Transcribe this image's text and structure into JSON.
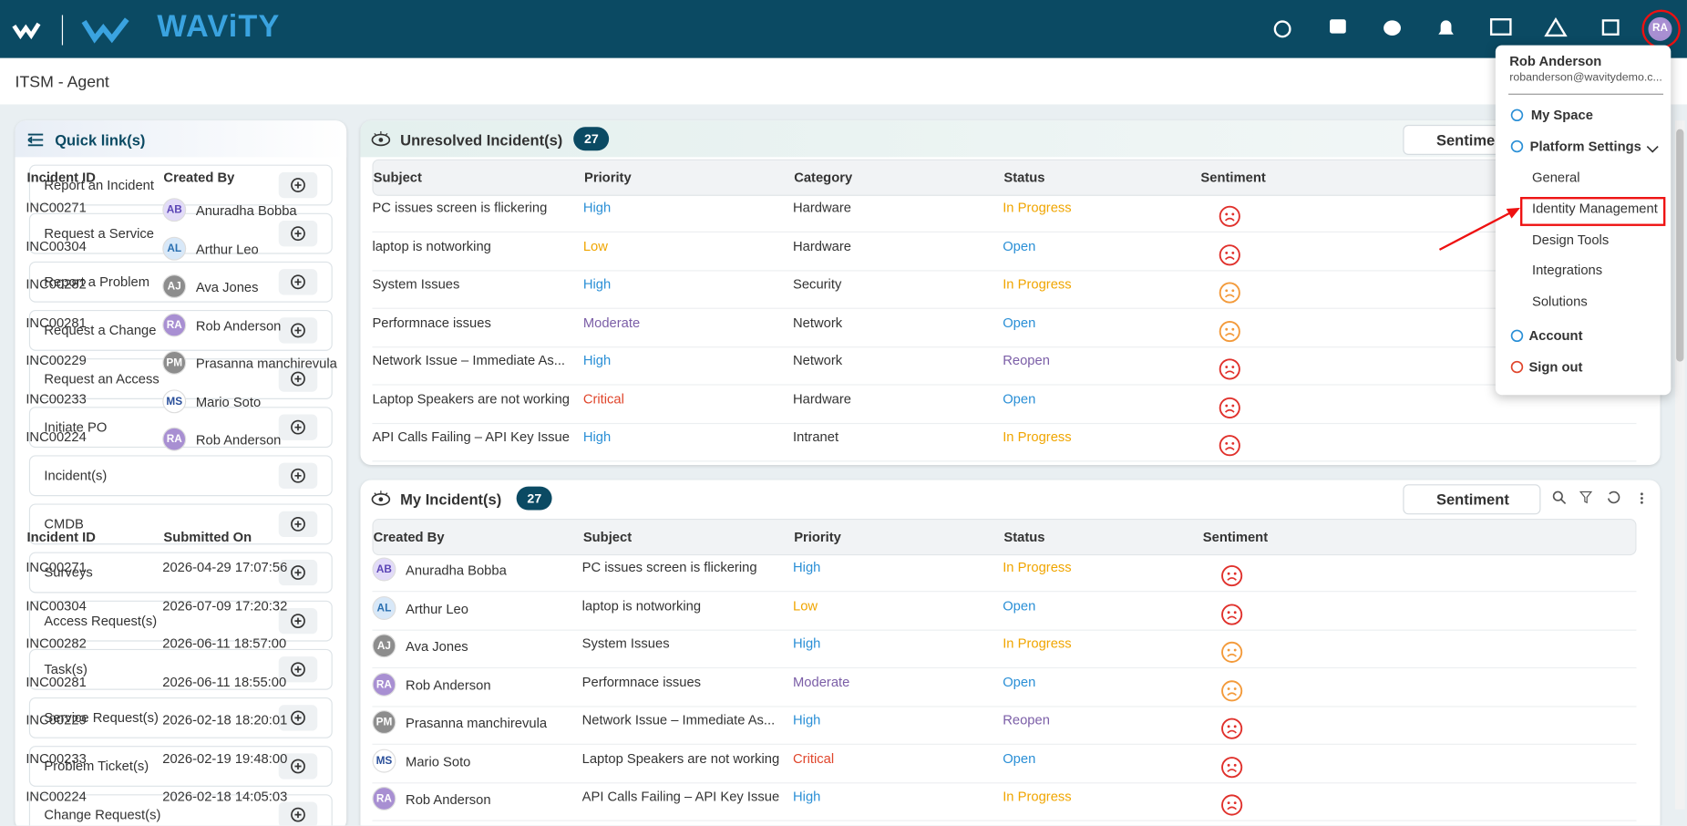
{
  "header": {
    "logo": "WAViTY",
    "avatar": "RA"
  },
  "page_title": "ITSM - Agent",
  "quick_links": {
    "title": "Quick link(s)",
    "items": [
      "Report an Incident",
      "Request a Service",
      "Report a Problem",
      "Request a Change",
      "Request an Access",
      "Initiate PO",
      "Incident(s)",
      "CMDB",
      "Surveys",
      "Access Request(s)",
      "Task(s)",
      "Service Request(s)",
      "Problem Ticket(s)",
      "Change Request(s)"
    ]
  },
  "colors": {
    "High": "#2a8fd6",
    "Low": "#f0a500",
    "Moderate": "#7b5ea7",
    "Critical": "#e0452b",
    "In Progress": "#f0a500",
    "Open": "#2a8fd6",
    "Reopen": "#7b5ea7"
  },
  "avatar_colors": {
    "AB": [
      "#e2dbf8",
      "#5b45b5"
    ],
    "AL": [
      "#d8e8f8",
      "#2a6fb0"
    ],
    "AJ": [
      "#8d8d8d",
      "#ffffff"
    ],
    "RA": [
      "#a88fd2",
      "#ffffff"
    ],
    "PM": [
      "#8d8d8d",
      "#ffffff"
    ],
    "MS": [
      "#ffffff",
      "#2a4f9a"
    ]
  },
  "unresolved": {
    "title": "Unresolved Incident(s)",
    "count": "27",
    "sentiment_label": "Sentiment",
    "columns": [
      "Incident ID",
      "Created By",
      "Subject",
      "Priority",
      "Category",
      "Status",
      "Sentiment"
    ],
    "rows": [
      {
        "id": "INC00271",
        "initials": "AB",
        "name": "Anuradha Bobba",
        "subject": "PC issues screen is flickering",
        "priority": "High",
        "category": "Hardware",
        "status": "In Progress",
        "sentiment": "#e0302b"
      },
      {
        "id": "INC00304",
        "initials": "AL",
        "name": "Arthur Leo",
        "subject": "laptop is notworking",
        "priority": "Low",
        "category": "Hardware",
        "status": "Open",
        "sentiment": "#e0302b"
      },
      {
        "id": "INC00282",
        "initials": "AJ",
        "name": "Ava Jones",
        "subject": "System Issues",
        "priority": "High",
        "category": "Security",
        "status": "In Progress",
        "sentiment": "#f39a3a"
      },
      {
        "id": "INC00281",
        "initials": "RA",
        "name": "Rob Anderson",
        "subject": "Performnace issues",
        "priority": "Moderate",
        "category": "Network",
        "status": "Open",
        "sentiment": "#f39a3a"
      },
      {
        "id": "INC00229",
        "initials": "PM",
        "name": "Prasanna manchirevula",
        "subject": "Network Issue – Immediate As...",
        "priority": "High",
        "category": "Network",
        "status": "Reopen",
        "sentiment": "#e0302b"
      },
      {
        "id": "INC00233",
        "initials": "MS",
        "name": "Mario Soto",
        "subject": "Laptop Speakers are not working",
        "priority": "Critical",
        "category": "Hardware",
        "status": "Open",
        "sentiment": "#e0302b"
      },
      {
        "id": "INC00224",
        "initials": "RA",
        "name": "Rob Anderson",
        "subject": "API Calls Failing – API Key Issue",
        "priority": "High",
        "category": "Intranet",
        "status": "In Progress",
        "sentiment": "#e0302b"
      }
    ]
  },
  "my_incidents": {
    "title": "My Incident(s)",
    "count": "27",
    "sentiment_label": "Sentiment",
    "columns": [
      "Incident ID",
      "Submitted On",
      "Created By",
      "Subject",
      "Priority",
      "Status",
      "Sentiment"
    ],
    "rows": [
      {
        "id": "INC00271",
        "submitted": "2026-04-29 17:07:56",
        "initials": "AB",
        "name": "Anuradha Bobba",
        "subject": "PC issues screen is flickering",
        "priority": "High",
        "status": "In Progress",
        "sentiment": "#e0302b"
      },
      {
        "id": "INC00304",
        "submitted": "2026-07-09 17:20:32",
        "initials": "AL",
        "name": "Arthur Leo",
        "subject": "laptop is notworking",
        "priority": "Low",
        "status": "Open",
        "sentiment": "#e0302b"
      },
      {
        "id": "INC00282",
        "submitted": "2026-06-11 18:57:00",
        "initials": "AJ",
        "name": "Ava Jones",
        "subject": "System Issues",
        "priority": "High",
        "status": "In Progress",
        "sentiment": "#f39a3a"
      },
      {
        "id": "INC00281",
        "submitted": "2026-06-11 18:55:00",
        "initials": "RA",
        "name": "Rob Anderson",
        "subject": "Performnace issues",
        "priority": "Moderate",
        "status": "Open",
        "sentiment": "#f39a3a"
      },
      {
        "id": "INC00229",
        "submitted": "2026-02-18 18:20:01",
        "initials": "PM",
        "name": "Prasanna manchirevula",
        "subject": "Network Issue – Immediate As...",
        "priority": "High",
        "status": "Reopen",
        "sentiment": "#e0302b"
      },
      {
        "id": "INC00233",
        "submitted": "2026-02-19 19:48:00",
        "initials": "MS",
        "name": "Mario Soto",
        "subject": "Laptop Speakers are not working",
        "priority": "Critical",
        "status": "Open",
        "sentiment": "#e0302b"
      },
      {
        "id": "INC00224",
        "submitted": "2026-02-18 14:05:03",
        "initials": "RA",
        "name": "Rob Anderson",
        "subject": "API Calls Failing – API Key Issue",
        "priority": "High",
        "status": "In Progress",
        "sentiment": "#e0302b"
      }
    ]
  },
  "user_menu": {
    "name": "Rob Anderson",
    "email": "robanderson@wavitydemo.c...",
    "items": [
      "My Space",
      "Platform Settings",
      "General",
      "Identity Management",
      "Design Tools",
      "Integrations",
      "Solutions",
      "Account",
      "Sign out"
    ]
  }
}
